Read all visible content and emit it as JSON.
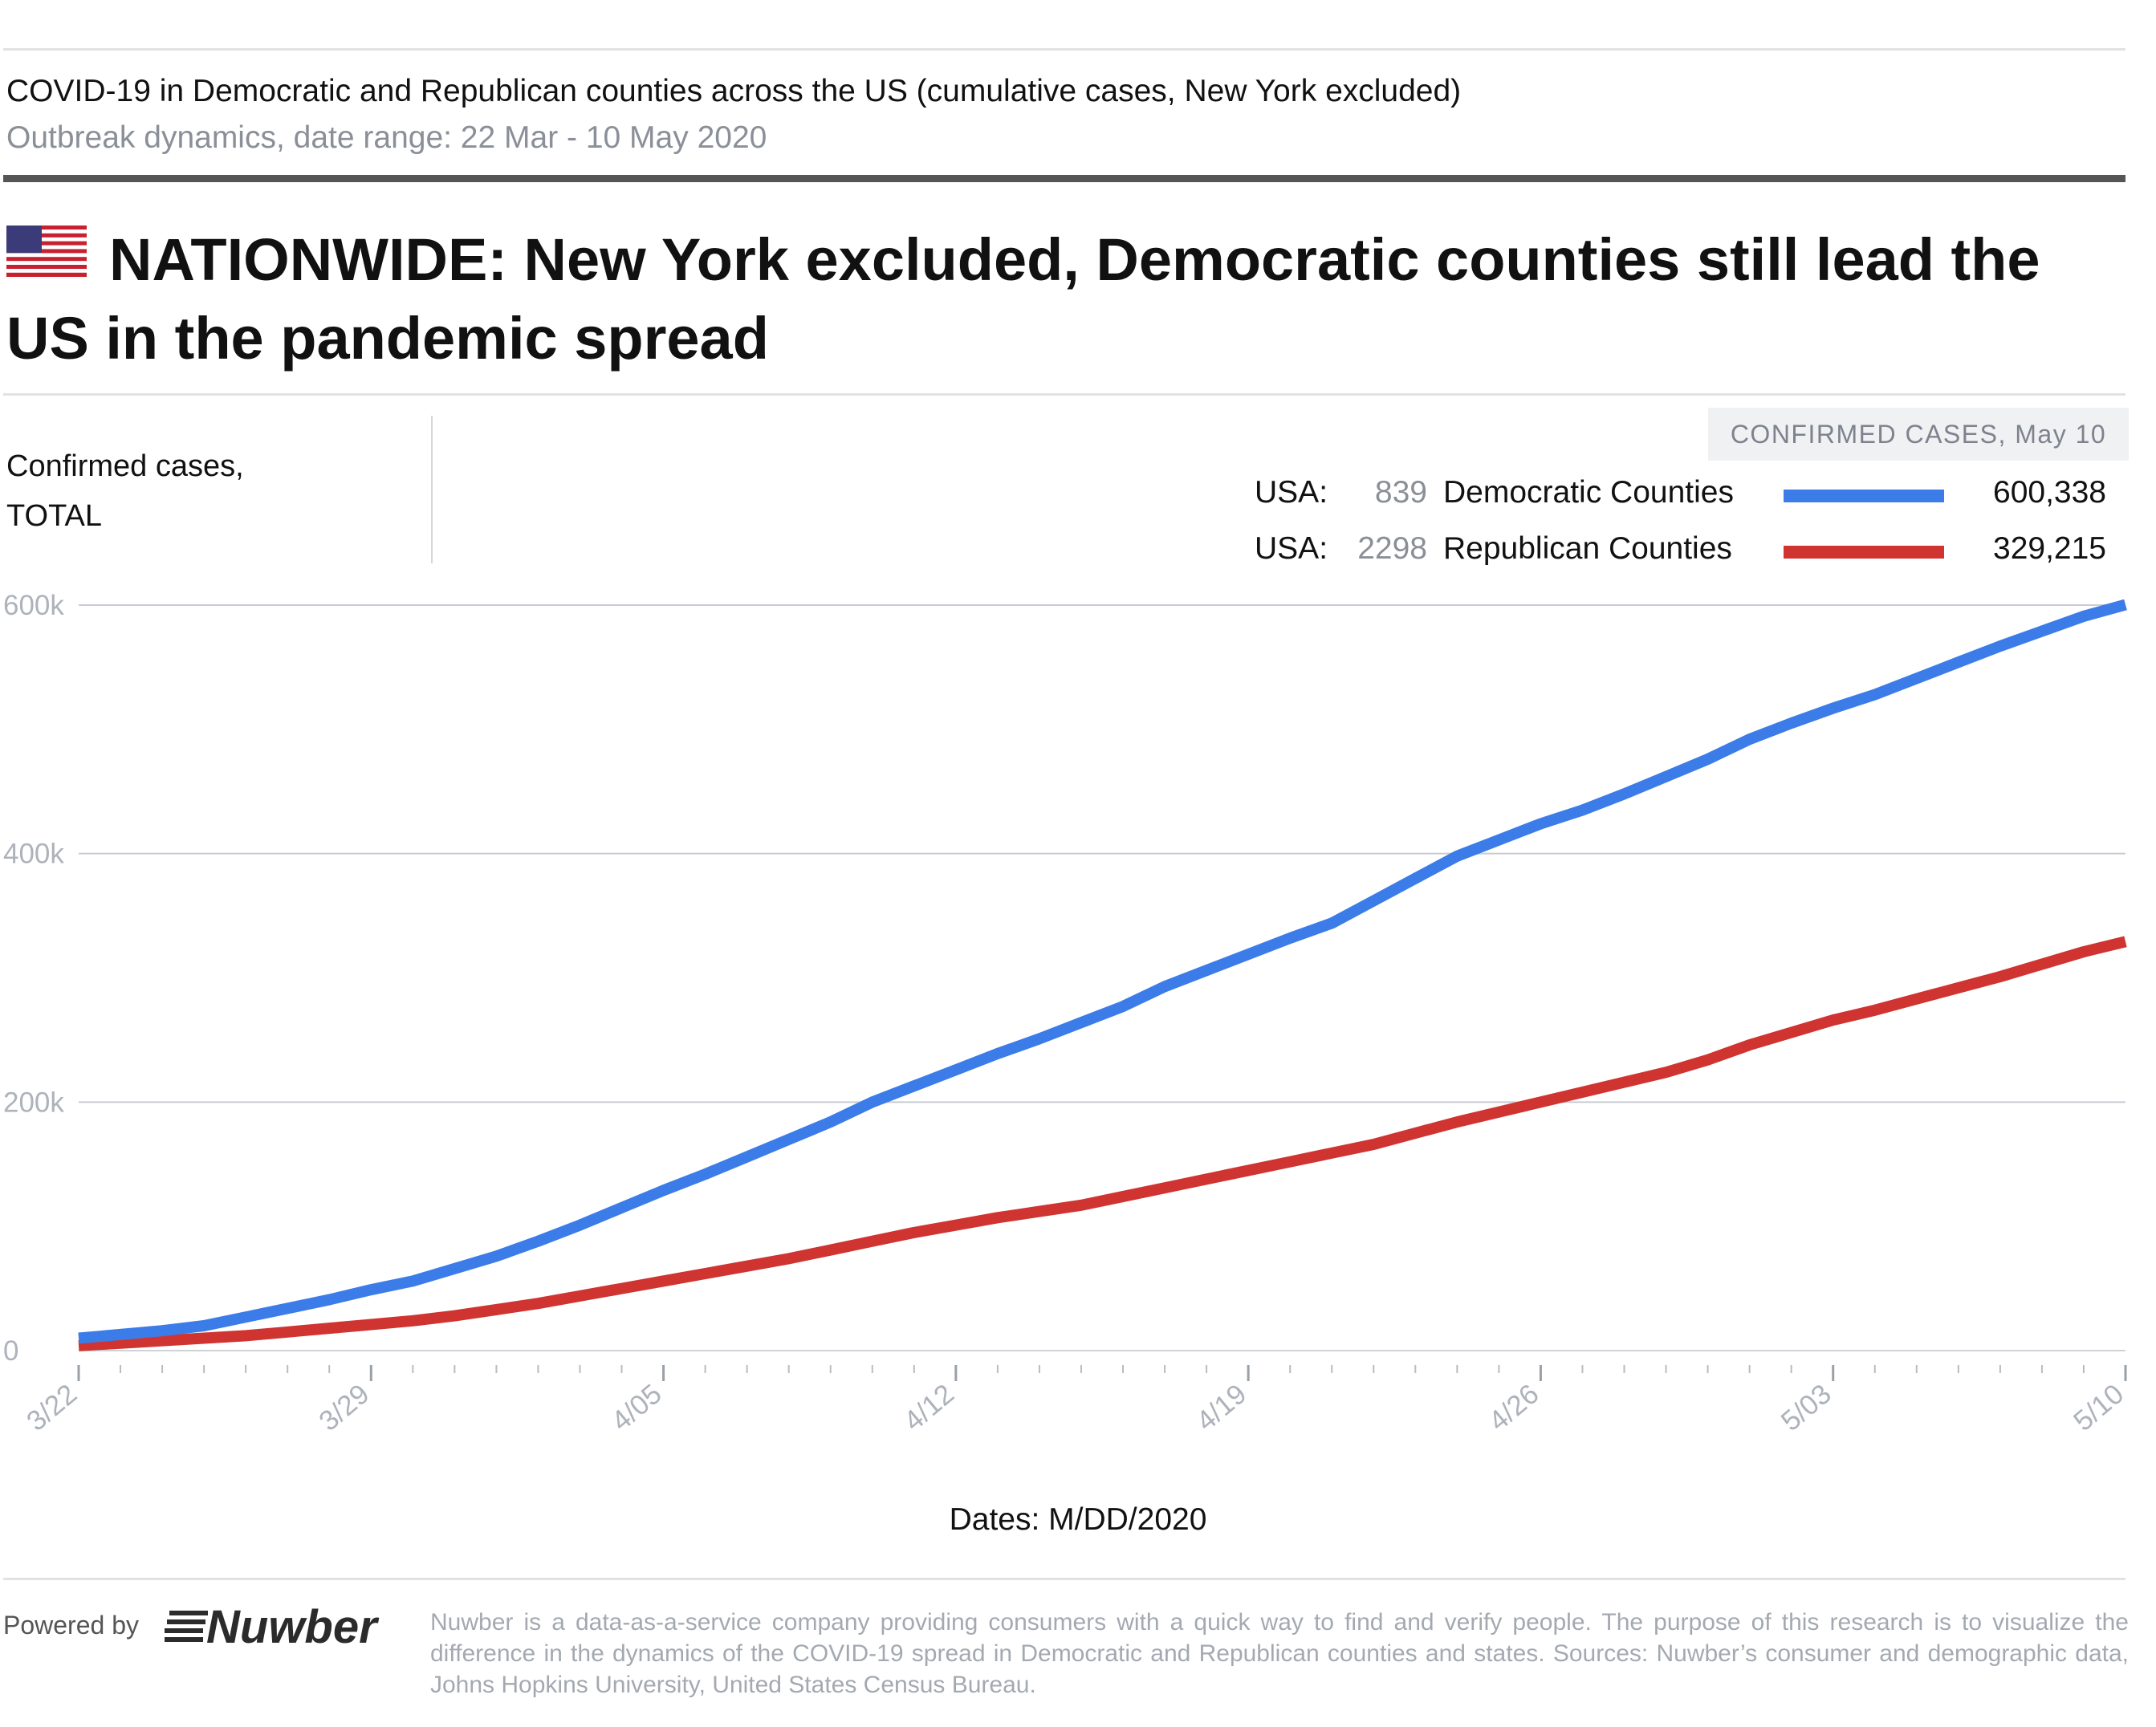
{
  "header": {
    "title": "COVID-19 in Democratic and Republican counties across the US (cumulative cases, New York excluded)",
    "subtitle": "Outbreak dynamics, date range: 22 Mar - 10 May 2020"
  },
  "headline": "NATIONWIDE: New York excluded, Democratic counties still lead the US in the pandemic spread",
  "flag_icon": "us-flag-icon",
  "y_label_lines": [
    "Confirmed cases,",
    "TOTAL"
  ],
  "legend": {
    "header": "CONFIRMED CASES, May 10",
    "rows": [
      {
        "prefix": "USA:",
        "count": "839",
        "name": "Democratic Counties",
        "color": "#3c7ce8",
        "value": "600,338"
      },
      {
        "prefix": "USA:",
        "count": "2298",
        "name": "Republican Counties",
        "color": "#cf3431",
        "value": "329,215"
      }
    ]
  },
  "x_axis_label": "Dates: M/DD/2020",
  "footer": {
    "powered_by": "Powered by",
    "logo": "Nuwber",
    "disclaimer": "Nuwber is a data-as-a-service company providing consumers with a quick way to find and verify people. The purpose of this research is to visualize the difference in the dynamics of the COVID-19 spread in Democratic and Republican counties and states. Sources: Nuwber’s consumer and demographic data, Johns Hopkins University, United States Census Bureau."
  },
  "chart_data": {
    "type": "line",
    "title": "NATIONWIDE: New York excluded, Democratic counties still lead the US in the pandemic spread",
    "subtitle": "Outbreak dynamics, date range: 22 Mar - 10 May 2020",
    "xlabel": "Dates: M/DD/2020",
    "ylabel": "Confirmed cases, TOTAL",
    "ylim": [
      0,
      600000
    ],
    "y_ticks": [
      0,
      200000,
      400000,
      600000
    ],
    "y_tick_labels": [
      "0",
      "200k",
      "400k",
      "600k"
    ],
    "x_tick_labels": [
      "3/22",
      "3/29",
      "4/05",
      "4/12",
      "4/19",
      "4/26",
      "5/03",
      "5/10"
    ],
    "grid": true,
    "legend_position": "top-right",
    "x": [
      "3/22",
      "3/23",
      "3/24",
      "3/25",
      "3/26",
      "3/27",
      "3/28",
      "3/29",
      "3/30",
      "3/31",
      "4/01",
      "4/02",
      "4/03",
      "4/04",
      "4/05",
      "4/06",
      "4/07",
      "4/08",
      "4/09",
      "4/10",
      "4/11",
      "4/12",
      "4/13",
      "4/14",
      "4/15",
      "4/16",
      "4/17",
      "4/18",
      "4/19",
      "4/20",
      "4/21",
      "4/22",
      "4/23",
      "4/24",
      "4/25",
      "4/26",
      "4/27",
      "4/28",
      "4/29",
      "4/30",
      "5/01",
      "5/02",
      "5/03",
      "5/04",
      "5/05",
      "5/06",
      "5/07",
      "5/08",
      "5/09",
      "5/10"
    ],
    "series": [
      {
        "name": "Democratic Counties",
        "color": "#3c7ce8",
        "values": [
          10000,
          13000,
          16000,
          20000,
          27000,
          34000,
          41000,
          49000,
          56000,
          66000,
          76000,
          88000,
          101000,
          115000,
          129000,
          142000,
          156000,
          170000,
          184000,
          200000,
          213000,
          226000,
          239000,
          251000,
          264000,
          277000,
          293000,
          306000,
          319000,
          332000,
          344000,
          362000,
          380000,
          398000,
          411000,
          424000,
          435000,
          448000,
          462000,
          476000,
          492000,
          505000,
          517000,
          528000,
          541000,
          554000,
          567000,
          579000,
          591000,
          600338
        ]
      },
      {
        "name": "Republican Counties",
        "color": "#cf3431",
        "values": [
          4000,
          6000,
          8000,
          10000,
          12000,
          15000,
          18000,
          21000,
          24000,
          28000,
          33000,
          38000,
          44000,
          50000,
          56000,
          62000,
          68000,
          74000,
          81000,
          88000,
          95000,
          101000,
          107000,
          112000,
          117000,
          124000,
          131000,
          138000,
          145000,
          152000,
          159000,
          166000,
          175000,
          184000,
          192000,
          200000,
          208000,
          216000,
          224000,
          234000,
          246000,
          256000,
          266000,
          274000,
          283000,
          292000,
          301000,
          311000,
          321000,
          329215
        ]
      }
    ]
  }
}
